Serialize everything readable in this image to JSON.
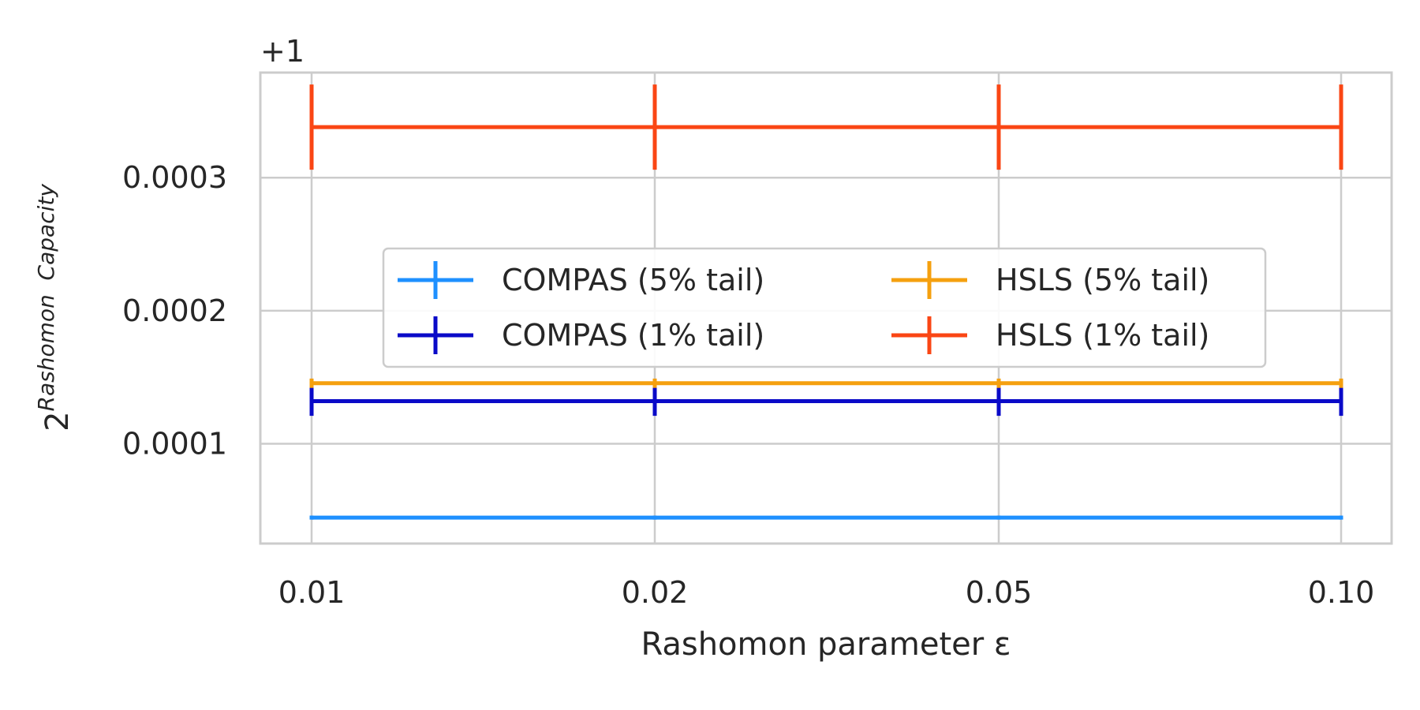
{
  "chart_data": {
    "type": "line",
    "title": "",
    "xlabel": "Rashomon parameter ε",
    "ylabel": {
      "base": "2",
      "exponent": "Rashomon  Capacity"
    },
    "y_offset_label": "+1",
    "x_tick_labels": [
      "0.01",
      "0.02",
      "0.05",
      "0.10"
    ],
    "x": [
      0.01,
      0.02,
      0.05,
      0.1
    ],
    "ylim": [
      2.5e-05,
      0.000379
    ],
    "yticks": [
      0.0001,
      0.0002,
      0.0003
    ],
    "y_tick_labels": [
      "0.0001",
      "0.0002",
      "0.0003"
    ],
    "grid": true,
    "legend_position": "center",
    "legend_columns": 2,
    "series": [
      {
        "name": "COMPAS (5% tail)",
        "color": "#1e90ff",
        "values": [
          4.45e-05,
          4.45e-05,
          4.45e-05,
          4.45e-05
        ],
        "error": [
          1.5e-06,
          1.5e-06,
          1.5e-06,
          1.5e-06
        ]
      },
      {
        "name": "COMPAS (1% tail)",
        "color": "#0a0ac8",
        "values": [
          0.000132,
          0.000132,
          0.000132,
          0.000132
        ],
        "error": [
          1.1e-05,
          1.1e-05,
          1.1e-05,
          1.1e-05
        ]
      },
      {
        "name": "HSLS (5% tail)",
        "color": "#f5a00f",
        "values": [
          0.0001455,
          0.0001455,
          0.0001455,
          0.0001455
        ],
        "error": [
          3.5e-06,
          3.5e-06,
          3.5e-06,
          3.5e-06
        ]
      },
      {
        "name": "HSLS (1% tail)",
        "color": "#fa4614",
        "values": [
          0.000338,
          0.000338,
          0.000338,
          0.000338
        ],
        "error": [
          3.2e-05,
          3.2e-05,
          3.2e-05,
          3.2e-05
        ]
      }
    ],
    "legend_order": [
      0,
      2,
      1,
      3
    ]
  }
}
